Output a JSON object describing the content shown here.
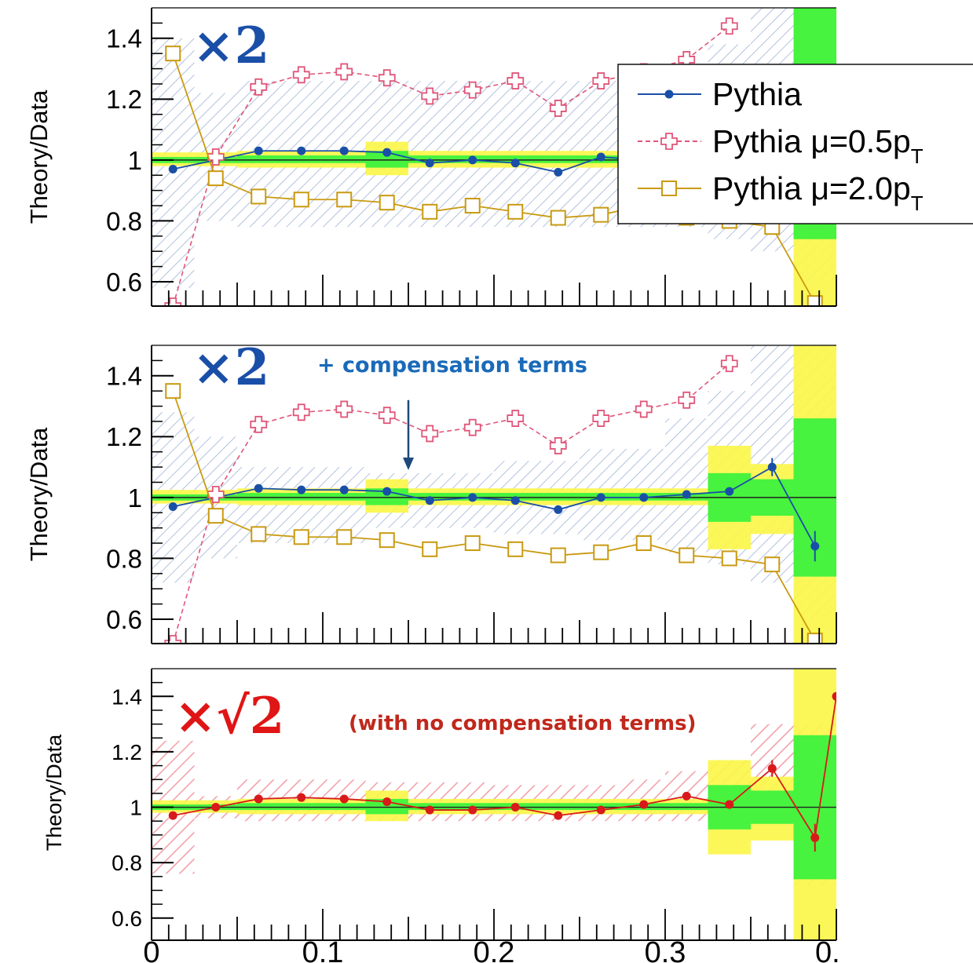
{
  "chart_data": [
    {
      "type": "line",
      "ylabel": "Theory/Data",
      "ylim": [
        0.52,
        1.5
      ],
      "xlim": [
        0,
        0.4
      ],
      "factor_label": "×2",
      "factor_color": "#1a4fa8",
      "band_style": "blue-hatched",
      "band": [
        {
          "x0": 0.0,
          "x1": 0.025,
          "lo": 0.58,
          "hi": 1.4
        },
        {
          "x0": 0.025,
          "x1": 0.05,
          "lo": 0.8,
          "hi": 1.22
        },
        {
          "x0": 0.05,
          "x1": 0.325,
          "lo": 0.78,
          "hi": 1.26
        },
        {
          "x0": 0.325,
          "x1": 0.35,
          "lo": 0.74,
          "hi": 1.38
        },
        {
          "x0": 0.35,
          "x1": 0.375,
          "lo": 0.7,
          "hi": 1.5
        },
        {
          "x0": 0.375,
          "x1": 0.4,
          "lo": 0.6,
          "hi": 1.5
        }
      ],
      "unc": [
        {
          "x0": 0.0,
          "x1": 0.025,
          "y1": [
            0.98,
            1.025
          ],
          "y2": [
            0.99,
            1.01
          ]
        },
        {
          "x0": 0.025,
          "x1": 0.05,
          "y1": [
            0.98,
            1.025
          ],
          "y2": [
            0.99,
            1.01
          ]
        },
        {
          "x0": 0.05,
          "x1": 0.125,
          "y1": [
            0.975,
            1.03
          ],
          "y2": [
            0.99,
            1.015
          ]
        },
        {
          "x0": 0.125,
          "x1": 0.15,
          "y1": [
            0.95,
            1.06
          ],
          "y2": [
            0.975,
            1.03
          ]
        },
        {
          "x0": 0.15,
          "x1": 0.325,
          "y1": [
            0.975,
            1.03
          ],
          "y2": [
            0.99,
            1.015
          ]
        },
        {
          "x0": 0.325,
          "x1": 0.35,
          "y1": [
            0.975,
            1.03
          ],
          "y2": [
            0.99,
            1.015
          ]
        },
        {
          "x0": 0.35,
          "x1": 0.375,
          "y1": [
            0.975,
            1.03
          ],
          "y2": [
            0.99,
            1.015
          ]
        },
        {
          "x0": 0.375,
          "x1": 0.4,
          "y1": [
            0.52,
            1.5
          ],
          "y2": [
            0.74,
            1.5
          ]
        }
      ],
      "series": [
        {
          "name": "Pythia",
          "color": "#1a4fa8",
          "style": "solid",
          "marker": "dot",
          "x": [
            0.0125,
            0.0375,
            0.0625,
            0.0875,
            0.1125,
            0.1375,
            0.1625,
            0.1875,
            0.2125,
            0.2375,
            0.2625,
            0.2875,
            0.3125,
            0.3375,
            0.3625
          ],
          "y": [
            0.97,
            1.0,
            1.03,
            1.03,
            1.03,
            1.025,
            0.99,
            1.0,
            0.99,
            0.96,
            1.01,
            1.0,
            1.01,
            1.03,
            1.1
          ],
          "err": [
            0,
            0,
            0,
            0,
            0,
            0,
            0,
            0,
            0,
            0,
            0,
            0,
            0,
            0,
            0
          ]
        },
        {
          "name": "Pythia μ=0.5p_T",
          "color": "#e0567a",
          "style": "dashed",
          "marker": "cross",
          "x": [
            0.0125,
            0.0375,
            0.0625,
            0.0875,
            0.1125,
            0.1375,
            0.1625,
            0.1875,
            0.2125,
            0.2375,
            0.2625,
            0.2875,
            0.3125,
            0.3375
          ],
          "y": [
            0.52,
            1.01,
            1.24,
            1.28,
            1.29,
            1.27,
            1.21,
            1.23,
            1.26,
            1.17,
            1.26,
            1.29,
            1.33,
            1.44
          ],
          "err": [
            0,
            0,
            0,
            0,
            0,
            0,
            0,
            0,
            0,
            0,
            0,
            0,
            0,
            0
          ]
        },
        {
          "name": "Pythia μ=2.0p_T",
          "color": "#c99a10",
          "style": "solid",
          "marker": "square",
          "x": [
            0.0125,
            0.0375,
            0.0625,
            0.0875,
            0.1125,
            0.1375,
            0.1625,
            0.1875,
            0.2125,
            0.2375,
            0.2625,
            0.2875,
            0.3125,
            0.3375,
            0.3625,
            0.3875
          ],
          "y": [
            1.35,
            0.94,
            0.88,
            0.87,
            0.87,
            0.86,
            0.83,
            0.85,
            0.83,
            0.81,
            0.82,
            0.85,
            0.81,
            0.8,
            0.78,
            0.53
          ],
          "err": [
            0,
            0,
            0,
            0,
            0,
            0,
            0,
            0,
            0,
            0,
            0,
            0,
            0,
            0,
            0,
            0
          ]
        }
      ]
    },
    {
      "type": "line",
      "ylabel": "Theory/Data",
      "ylim": [
        0.52,
        1.5
      ],
      "xlim": [
        0,
        0.4
      ],
      "factor_label": "×2",
      "factor_color": "#1a4fa8",
      "annotation": "+ compensation terms",
      "annotation_color": "#1a6ab8",
      "annotation_arrow": {
        "x": 0.15,
        "y_from": 1.32,
        "y_to": 1.09
      },
      "band_style": "blue-hatched",
      "band": [
        {
          "x0": 0.0,
          "x1": 0.025,
          "lo": 0.72,
          "hi": 1.28
        },
        {
          "x0": 0.025,
          "x1": 0.05,
          "lo": 0.8,
          "hi": 1.2
        },
        {
          "x0": 0.05,
          "x1": 0.125,
          "lo": 0.85,
          "hi": 1.1
        },
        {
          "x0": 0.125,
          "x1": 0.2,
          "lo": 0.9,
          "hi": 1.08
        },
        {
          "x0": 0.2,
          "x1": 0.25,
          "lo": 0.88,
          "hi": 1.12
        },
        {
          "x0": 0.25,
          "x1": 0.3,
          "lo": 0.86,
          "hi": 1.16
        },
        {
          "x0": 0.3,
          "x1": 0.325,
          "lo": 0.82,
          "hi": 1.26
        },
        {
          "x0": 0.325,
          "x1": 0.35,
          "lo": 0.78,
          "hi": 1.35
        },
        {
          "x0": 0.35,
          "x1": 0.375,
          "lo": 0.72,
          "hi": 1.5
        },
        {
          "x0": 0.375,
          "x1": 0.4,
          "lo": 0.6,
          "hi": 1.5
        }
      ],
      "unc": [
        {
          "x0": 0.0,
          "x1": 0.025,
          "y1": [
            0.98,
            1.025
          ],
          "y2": [
            0.99,
            1.01
          ]
        },
        {
          "x0": 0.025,
          "x1": 0.05,
          "y1": [
            0.98,
            1.025
          ],
          "y2": [
            0.99,
            1.01
          ]
        },
        {
          "x0": 0.05,
          "x1": 0.125,
          "y1": [
            0.975,
            1.03
          ],
          "y2": [
            0.99,
            1.015
          ]
        },
        {
          "x0": 0.125,
          "x1": 0.15,
          "y1": [
            0.95,
            1.06
          ],
          "y2": [
            0.975,
            1.03
          ]
        },
        {
          "x0": 0.15,
          "x1": 0.325,
          "y1": [
            0.975,
            1.03
          ],
          "y2": [
            0.99,
            1.015
          ]
        },
        {
          "x0": 0.325,
          "x1": 0.35,
          "y1": [
            0.83,
            1.17
          ],
          "y2": [
            0.92,
            1.08
          ]
        },
        {
          "x0": 0.35,
          "x1": 0.375,
          "y1": [
            0.88,
            1.11
          ],
          "y2": [
            0.94,
            1.06
          ]
        },
        {
          "x0": 0.375,
          "x1": 0.4,
          "y1": [
            0.52,
            1.5
          ],
          "y2": [
            0.74,
            1.26
          ]
        }
      ],
      "series": [
        {
          "name": "Pythia",
          "color": "#1a4fa8",
          "style": "solid",
          "marker": "dot",
          "x": [
            0.0125,
            0.0375,
            0.0625,
            0.0875,
            0.1125,
            0.1375,
            0.1625,
            0.1875,
            0.2125,
            0.2375,
            0.2625,
            0.2875,
            0.3125,
            0.3375,
            0.3625,
            0.3875
          ],
          "y": [
            0.97,
            1.0,
            1.03,
            1.025,
            1.025,
            1.02,
            0.99,
            1.0,
            0.99,
            0.96,
            1.0,
            1.0,
            1.01,
            1.02,
            1.1,
            0.84
          ],
          "err": [
            0,
            0,
            0,
            0,
            0,
            0,
            0,
            0,
            0,
            0,
            0,
            0,
            0,
            0,
            0.03,
            0.05
          ]
        },
        {
          "name": "Pythia μ=0.5p_T",
          "color": "#e0567a",
          "style": "dashed",
          "marker": "cross",
          "x": [
            0.0125,
            0.0375,
            0.0625,
            0.0875,
            0.1125,
            0.1375,
            0.1625,
            0.1875,
            0.2125,
            0.2375,
            0.2625,
            0.2875,
            0.3125,
            0.3375
          ],
          "y": [
            0.52,
            1.01,
            1.24,
            1.28,
            1.29,
            1.27,
            1.21,
            1.23,
            1.26,
            1.17,
            1.26,
            1.29,
            1.32,
            1.44
          ],
          "err": [
            0,
            0,
            0,
            0,
            0,
            0,
            0,
            0,
            0,
            0,
            0,
            0,
            0,
            0
          ]
        },
        {
          "name": "Pythia μ=2.0p_T",
          "color": "#c99a10",
          "style": "solid",
          "marker": "square",
          "x": [
            0.0125,
            0.0375,
            0.0625,
            0.0875,
            0.1125,
            0.1375,
            0.1625,
            0.1875,
            0.2125,
            0.2375,
            0.2625,
            0.2875,
            0.3125,
            0.3375,
            0.3625,
            0.3875
          ],
          "y": [
            1.35,
            0.94,
            0.88,
            0.87,
            0.87,
            0.86,
            0.83,
            0.85,
            0.83,
            0.81,
            0.82,
            0.85,
            0.81,
            0.8,
            0.78,
            0.53
          ],
          "err": [
            0,
            0,
            0,
            0,
            0,
            0,
            0,
            0,
            0,
            0,
            0,
            0,
            0,
            0,
            0.02,
            0
          ]
        }
      ]
    },
    {
      "type": "line",
      "ylabel": "Theory/Data",
      "ylim": [
        0.52,
        1.5
      ],
      "xlim": [
        0,
        0.4
      ],
      "factor_label": "×√2",
      "factor_color": "#e01515",
      "annotation": "(with no compensation terms)",
      "annotation_color": "#c0281c",
      "band_style": "red-hatched",
      "band": [
        {
          "x0": 0.0,
          "x1": 0.025,
          "lo": 0.76,
          "hi": 1.24
        },
        {
          "x0": 0.025,
          "x1": 0.05,
          "lo": 0.96,
          "hi": 1.04
        },
        {
          "x0": 0.05,
          "x1": 0.125,
          "lo": 0.95,
          "hi": 1.1
        },
        {
          "x0": 0.125,
          "x1": 0.2,
          "lo": 0.95,
          "hi": 1.09
        },
        {
          "x0": 0.2,
          "x1": 0.275,
          "lo": 0.95,
          "hi": 1.08
        },
        {
          "x0": 0.275,
          "x1": 0.3,
          "lo": 0.95,
          "hi": 1.1
        },
        {
          "x0": 0.3,
          "x1": 0.325,
          "lo": 0.95,
          "hi": 1.13
        },
        {
          "x0": 0.325,
          "x1": 0.35,
          "lo": 0.93,
          "hi": 1.17
        },
        {
          "x0": 0.35,
          "x1": 0.375,
          "lo": 0.98,
          "hi": 1.3
        },
        {
          "x0": 0.375,
          "x1": 0.4,
          "lo": 0.72,
          "hi": 1.3
        }
      ],
      "unc": [
        {
          "x0": 0.0,
          "x1": 0.025,
          "y1": [
            0.98,
            1.025
          ],
          "y2": [
            0.99,
            1.01
          ]
        },
        {
          "x0": 0.025,
          "x1": 0.05,
          "y1": [
            0.98,
            1.025
          ],
          "y2": [
            0.99,
            1.01
          ]
        },
        {
          "x0": 0.05,
          "x1": 0.125,
          "y1": [
            0.975,
            1.03
          ],
          "y2": [
            0.99,
            1.015
          ]
        },
        {
          "x0": 0.125,
          "x1": 0.15,
          "y1": [
            0.95,
            1.06
          ],
          "y2": [
            0.975,
            1.03
          ]
        },
        {
          "x0": 0.15,
          "x1": 0.325,
          "y1": [
            0.975,
            1.03
          ],
          "y2": [
            0.99,
            1.015
          ]
        },
        {
          "x0": 0.325,
          "x1": 0.35,
          "y1": [
            0.83,
            1.17
          ],
          "y2": [
            0.92,
            1.08
          ]
        },
        {
          "x0": 0.35,
          "x1": 0.375,
          "y1": [
            0.88,
            1.11
          ],
          "y2": [
            0.94,
            1.06
          ]
        },
        {
          "x0": 0.375,
          "x1": 0.4,
          "y1": [
            0.52,
            1.5
          ],
          "y2": [
            0.74,
            1.26
          ]
        }
      ],
      "series": [
        {
          "name": "Pythia",
          "color": "#d81a1a",
          "style": "solid",
          "marker": "dot",
          "x": [
            0.0125,
            0.0375,
            0.0625,
            0.0875,
            0.1125,
            0.1375,
            0.1625,
            0.1875,
            0.2125,
            0.2375,
            0.2625,
            0.2875,
            0.3125,
            0.3375,
            0.3625,
            0.3875,
            0.4
          ],
          "y": [
            0.97,
            1.0,
            1.03,
            1.035,
            1.03,
            1.02,
            0.99,
            0.99,
            1.0,
            0.97,
            0.99,
            1.01,
            1.04,
            1.01,
            1.14,
            0.89,
            1.4
          ],
          "err": [
            0,
            0,
            0,
            0,
            0,
            0,
            0,
            0,
            0,
            0,
            0,
            0,
            0,
            0,
            0.03,
            0.05,
            0
          ]
        }
      ]
    }
  ],
  "xaxis": {
    "ticks": [
      0,
      0.1,
      0.2,
      0.3
    ],
    "tick_labels": [
      "0",
      "0.1",
      "0.2",
      "0.3"
    ],
    "edge_label": "0."
  },
  "yaxis": {
    "ticks": [
      0.6,
      0.8,
      1.0,
      1.2,
      1.4
    ],
    "tick_labels": [
      "0.6",
      "0.8",
      "1",
      "1.2",
      "1.4"
    ]
  },
  "legend": {
    "placement": "top-right",
    "entries": [
      {
        "label": "Pythia",
        "color": "#1a4fa8",
        "style": "solid",
        "marker": "dot"
      },
      {
        "label": "Pythia μ=0.5p",
        "sub": "T",
        "color": "#e0567a",
        "style": "dashed",
        "marker": "cross"
      },
      {
        "label": "Pythia μ=2.0p",
        "sub": "T",
        "color": "#c99a10",
        "style": "solid",
        "marker": "square"
      }
    ]
  },
  "colors": {
    "unc_outer": "#fbf64a",
    "unc_inner": "#2ef23a",
    "blue_hatch": "#9fb3d8",
    "red_hatch": "#f2a2aa"
  }
}
